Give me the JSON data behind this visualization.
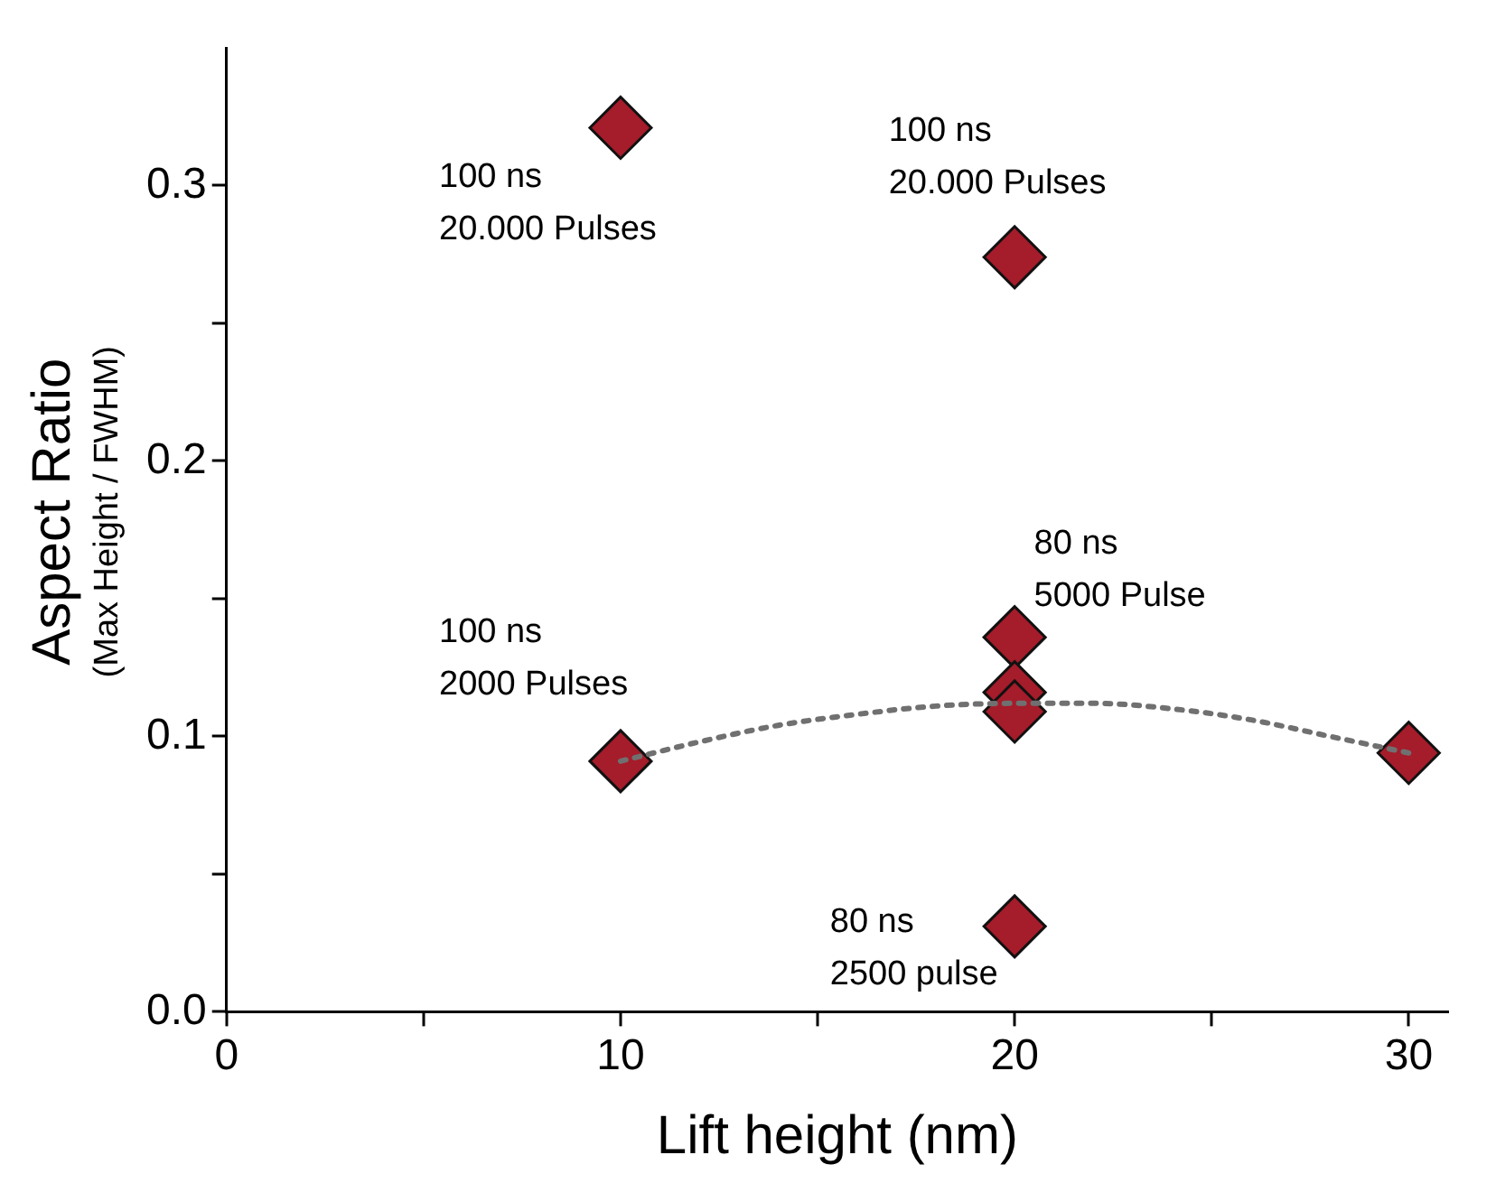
{
  "chart_data": {
    "type": "scatter",
    "xlabel": "Lift height (nm)",
    "ylabel": "Aspect Ratio\n(Max Height / FWHM)",
    "xlim": [
      0,
      31
    ],
    "xticks": [
      0,
      {
        "value": 5,
        "label": null
      },
      10,
      {
        "value": 15,
        "label": null
      },
      20,
      {
        "value": 25,
        "label": null
      },
      30
    ],
    "ylim": [
      0,
      0.35
    ],
    "yticks": [
      {
        "value": 0,
        "label": "0.0"
      },
      {
        "value": 0.05,
        "label": null
      },
      0.1,
      {
        "value": 0.15,
        "label": null
      },
      0.2,
      {
        "value": 0.25,
        "label": null
      },
      0.3
    ],
    "grid": false,
    "legend": false,
    "marker": "diamond",
    "series": [
      {
        "type": "scatter",
        "color": "#a51c2a",
        "x": [
          10,
          20,
          20,
          20,
          20,
          10,
          20,
          30
        ],
        "values": [
          0.321,
          0.274,
          0.136,
          0.116,
          0.109,
          0.091,
          0.031,
          0.094
        ]
      },
      {
        "type": "line",
        "color": "#707070",
        "line_style": "dotted",
        "marker": "none",
        "x": [
          10,
          12,
          14,
          16,
          18,
          20,
          22,
          24,
          26,
          28,
          30
        ],
        "values": [
          0.091,
          0.098,
          0.104,
          0.108,
          0.111,
          0.112,
          0.112,
          0.11,
          0.106,
          0.1,
          0.094
        ]
      }
    ],
    "annotations": [
      "100 ns\n20.000 Pulses",
      "100 ns\n20.000 Pulses",
      "80 ns\n5000 Pulse",
      "100 ns\n2000 Pulses",
      "80 ns\n2500 pulse"
    ]
  }
}
